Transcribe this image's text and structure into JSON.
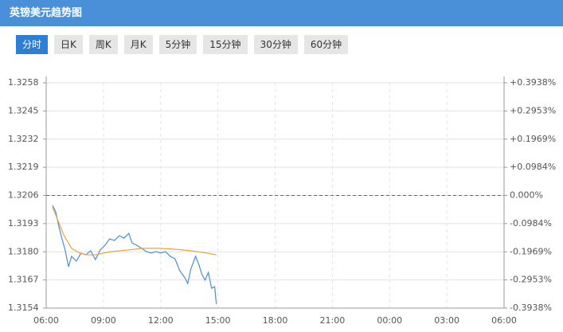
{
  "header": {
    "title": "英镑美元趋势图"
  },
  "tabs": [
    "分时",
    "日K",
    "周K",
    "月K",
    "5分钟",
    "15分钟",
    "30分钟",
    "60分钟"
  ],
  "active_tab": 0,
  "chart_data": {
    "type": "line",
    "xlim": [
      6,
      30
    ],
    "xticks": [
      {
        "value": 6,
        "label": "06:00"
      },
      {
        "value": 9,
        "label": "09:00"
      },
      {
        "value": 12,
        "label": "12:00"
      },
      {
        "value": 15,
        "label": "15:00"
      },
      {
        "value": 18,
        "label": "18:00"
      },
      {
        "value": 21,
        "label": "21:00"
      },
      {
        "value": 24,
        "label": "00:00"
      },
      {
        "value": 27,
        "label": "03:00"
      },
      {
        "value": 30,
        "label": "06:00"
      }
    ],
    "ylim": [
      1.3154,
      1.3258
    ],
    "yticks": [
      1.3258,
      1.3245,
      1.3232,
      1.3219,
      1.3206,
      1.3193,
      1.318,
      1.3167,
      1.3154
    ],
    "ytick_labels_fixed": [
      {
        "value": 1.318,
        "label": "1.3180"
      }
    ],
    "y2lim": [
      -0.3938,
      0.3938
    ],
    "y2ticks": [
      {
        "value": 0.3938,
        "label": "+0.3938%"
      },
      {
        "value": 0.2953,
        "label": "+0.2953%"
      },
      {
        "value": 0.1969,
        "label": "+0.1969%"
      },
      {
        "value": 0.0984,
        "label": "+0.0984%"
      },
      {
        "value": 0,
        "label": "0.000%"
      },
      {
        "value": -0.0984,
        "label": "-0.0984%"
      },
      {
        "value": -0.1969,
        "label": "-0.1969%"
      },
      {
        "value": -0.2953,
        "label": "-0.2953%"
      },
      {
        "value": -0.3938,
        "label": "-0.3938%"
      }
    ],
    "baseline": 1.3206,
    "baseline_color": "#d33",
    "up_color": "#d00",
    "down_color": "#080",
    "flat_color": "#999",
    "grid": true,
    "series": [
      {
        "color": "#4a8fd6",
        "x": [
          6.33,
          6.5,
          6.67,
          6.83,
          7.0,
          7.17,
          7.33,
          7.58,
          7.83,
          8.08,
          8.33,
          8.58,
          8.83,
          9.08,
          9.33,
          9.58,
          9.83,
          10.08,
          10.33,
          10.5,
          10.75,
          11.0,
          11.25,
          11.5,
          11.75,
          12.0,
          12.25,
          12.5,
          12.75,
          13.0,
          13.25,
          13.42,
          13.58,
          13.83,
          14.0,
          14.17,
          14.33,
          14.5,
          14.67,
          14.83,
          14.92
        ],
        "values": [
          1.32014,
          1.31985,
          1.31915,
          1.3186,
          1.31805,
          1.31731,
          1.31779,
          1.31757,
          1.31794,
          1.31786,
          1.31805,
          1.31764,
          1.31808,
          1.3183,
          1.3186,
          1.31852,
          1.31874,
          1.31863,
          1.31885,
          1.31841,
          1.3183,
          1.31816,
          1.31801,
          1.31794,
          1.31801,
          1.31794,
          1.31801,
          1.31779,
          1.31768,
          1.31713,
          1.31683,
          1.31654,
          1.3172,
          1.31779,
          1.31742,
          1.31694,
          1.31669,
          1.31705,
          1.31632,
          1.31639,
          1.31558
        ]
      },
      {
        "color": "#f0a040",
        "x": [
          6.33,
          6.92,
          7.33,
          7.75,
          8.17,
          8.58,
          9.0,
          9.42,
          10.25,
          11.08,
          11.92,
          12.75,
          13.58,
          14.42,
          14.92
        ],
        "values": [
          1.32007,
          1.31878,
          1.31816,
          1.31794,
          1.31786,
          1.31786,
          1.31794,
          1.31801,
          1.31808,
          1.31816,
          1.31816,
          1.31812,
          1.31805,
          1.31794,
          1.31786
        ]
      }
    ]
  }
}
